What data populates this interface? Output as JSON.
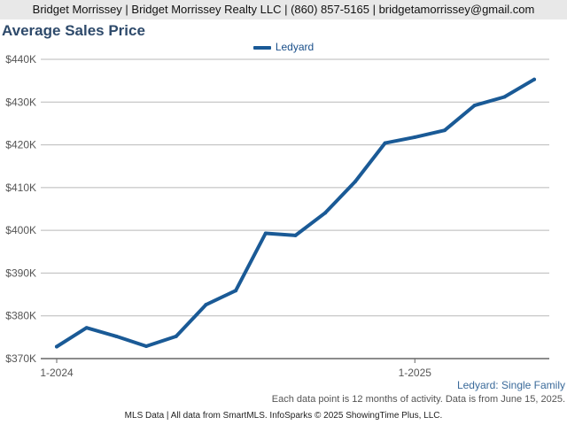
{
  "header": {
    "contact": "Bridget Morrissey | Bridget Morrissey Realty LLC | (860) 857-5165 | bridgetamorrissey@gmail.com"
  },
  "notes": {
    "series_description": "Ledyard: Single Family",
    "data_note": "Each data point is 12 months of activity. Data is from June 15, 2025."
  },
  "footer": {
    "source": "MLS Data | All data from SmartMLS. InfoSparks © 2025 ShowingTime Plus, LLC."
  },
  "chart_data": {
    "type": "line",
    "title": "Average Sales Price",
    "xlabel": "",
    "ylabel": "",
    "x": [
      "2024-01",
      "2024-02",
      "2024-03",
      "2024-04",
      "2024-05",
      "2024-06",
      "2024-07",
      "2024-08",
      "2024-09",
      "2024-10",
      "2024-11",
      "2024-12",
      "2025-01",
      "2025-02",
      "2025-03",
      "2025-04",
      "2025-05"
    ],
    "x_tick_labels": [
      {
        "label": "1-2024",
        "at": "2024-01"
      },
      {
        "label": "1-2025",
        "at": "2025-01"
      }
    ],
    "y_tick_labels": [
      "$370K",
      "$380K",
      "$390K",
      "$400K",
      "$410K",
      "$420K",
      "$430K",
      "$440K"
    ],
    "y_ticks": [
      370000,
      380000,
      390000,
      400000,
      410000,
      420000,
      430000,
      440000
    ],
    "ylim": [
      370000,
      440000
    ],
    "grid": "horizontal",
    "legend_position": "top-center",
    "series": [
      {
        "name": "Ledyard",
        "color": "#1a5a96",
        "values": [
          372800,
          377200,
          375200,
          372900,
          375200,
          382600,
          385900,
          399300,
          398800,
          404100,
          411400,
          420400,
          421800,
          423400,
          429200,
          431200,
          435300
        ]
      }
    ]
  }
}
